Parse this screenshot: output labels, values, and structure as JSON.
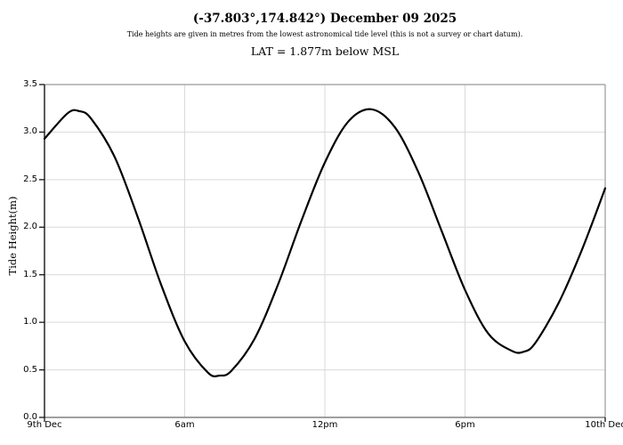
{
  "header": {
    "title": "(-37.803°,174.842°) December 09 2025",
    "subtitle": "Tide heights are given in metres from the lowest astronomical tide level (this is not a survey or chart datum).",
    "lat_note": "LAT = 1.877m below MSL"
  },
  "chart_data": {
    "type": "line",
    "title": "(-37.803°,174.842°) December 09 2025",
    "subtitle": "Tide heights are given in metres from the lowest astronomical tide level (this is not a survey or chart datum).",
    "annotation": "LAT = 1.877m below MSL",
    "xlabel": "",
    "ylabel": "Tide Height(m)",
    "x_unit": "hours from 9th Dec 00:00",
    "xlim": [
      0,
      24
    ],
    "ylim": [
      0,
      3.5
    ],
    "grid": true,
    "legend": "none",
    "line_color": "#000000",
    "grid_color": "#d9d9d9",
    "xticks": [
      {
        "value": 0,
        "label": "9th Dec"
      },
      {
        "value": 6,
        "label": "6am"
      },
      {
        "value": 12,
        "label": "12pm"
      },
      {
        "value": 18,
        "label": "6pm"
      },
      {
        "value": 24,
        "label": "10th Dec"
      }
    ],
    "yticks": [
      {
        "value": 0.0,
        "label": "0.0"
      },
      {
        "value": 0.5,
        "label": "0.5"
      },
      {
        "value": 1.0,
        "label": "1.0"
      },
      {
        "value": 1.5,
        "label": "1.5"
      },
      {
        "value": 2.0,
        "label": "2.0"
      },
      {
        "value": 2.5,
        "label": "2.5"
      },
      {
        "value": 3.0,
        "label": "3.0"
      },
      {
        "value": 3.5,
        "label": "3.5"
      }
    ],
    "series": [
      {
        "name": "Tide height (m)",
        "points": [
          [
            0,
            2.93
          ],
          [
            1,
            3.2
          ],
          [
            1.5,
            3.22
          ],
          [
            2,
            3.14
          ],
          [
            3,
            2.74
          ],
          [
            4,
            2.1
          ],
          [
            5,
            1.39
          ],
          [
            6,
            0.8
          ],
          [
            7,
            0.47
          ],
          [
            7.5,
            0.44
          ],
          [
            8,
            0.49
          ],
          [
            9,
            0.83
          ],
          [
            10,
            1.4
          ],
          [
            11,
            2.07
          ],
          [
            12,
            2.68
          ],
          [
            13,
            3.11
          ],
          [
            14,
            3.24
          ],
          [
            15,
            3.05
          ],
          [
            16,
            2.58
          ],
          [
            17,
            1.96
          ],
          [
            18,
            1.34
          ],
          [
            19,
            0.88
          ],
          [
            20,
            0.7
          ],
          [
            20.5,
            0.69
          ],
          [
            21,
            0.78
          ],
          [
            22,
            1.2
          ],
          [
            23,
            1.76
          ],
          [
            24,
            2.41
          ]
        ]
      }
    ],
    "extremes": {
      "high_tides": [
        {
          "time_h": 1.5,
          "height_m": 3.22
        },
        {
          "time_h": 14.0,
          "height_m": 3.24
        }
      ],
      "low_tides": [
        {
          "time_h": 7.5,
          "height_m": 0.44
        },
        {
          "time_h": 20.5,
          "height_m": 0.69
        }
      ]
    }
  }
}
